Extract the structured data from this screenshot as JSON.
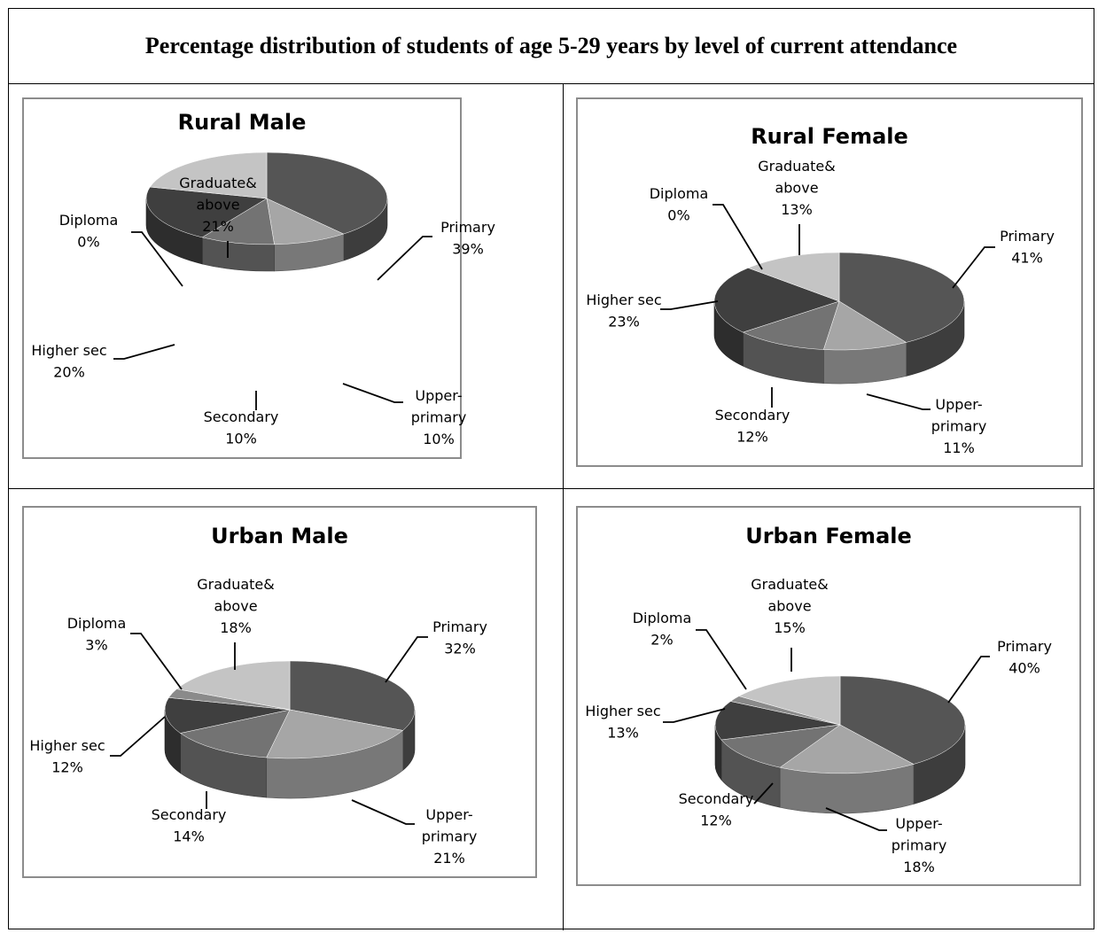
{
  "page_title": "Percentage distribution of students of age 5-29 years by level of current attendance",
  "chart_data": [
    {
      "type": "pie",
      "title": "Rural Male",
      "categories": [
        "Primary",
        "Upper-primary",
        "Secondary",
        "Higher sec",
        "Diploma",
        "Graduate& above"
      ],
      "values": [
        39,
        10,
        10,
        20,
        0,
        21
      ],
      "colors": [
        "#555555",
        "#a6a6a6",
        "#737373",
        "#3f3f3f",
        "#8a8a8a",
        "#c4c4c4"
      ],
      "label_texts": [
        [
          "Primary",
          "39%"
        ],
        [
          "Upper-",
          "primary",
          "10%"
        ],
        [
          "Secondary",
          "10%"
        ],
        [
          "Higher sec",
          "20%"
        ],
        [
          "Diploma",
          "0%"
        ],
        [
          "Graduate&",
          "above",
          "21%"
        ]
      ]
    },
    {
      "type": "pie",
      "title": "Rural Female",
      "categories": [
        "Primary",
        "Upper-primary",
        "Secondary",
        "Higher sec",
        "Diploma",
        "Graduate& above"
      ],
      "values": [
        41,
        11,
        12,
        23,
        0,
        13
      ],
      "colors": [
        "#555555",
        "#a6a6a6",
        "#737373",
        "#3f3f3f",
        "#8a8a8a",
        "#c4c4c4"
      ],
      "label_texts": [
        [
          "Primary",
          "41%"
        ],
        [
          "Upper-",
          "primary",
          "11%"
        ],
        [
          "Secondary",
          "12%"
        ],
        [
          "Higher sec",
          "23%"
        ],
        [
          "Diploma",
          "0%"
        ],
        [
          "Graduate&",
          "above",
          "13%"
        ]
      ]
    },
    {
      "type": "pie",
      "title": "Urban Male",
      "categories": [
        "Primary",
        "Upper-primary",
        "Secondary",
        "Higher sec",
        "Diploma",
        "Graduate& above"
      ],
      "values": [
        32,
        21,
        14,
        12,
        3,
        18
      ],
      "colors": [
        "#555555",
        "#a6a6a6",
        "#737373",
        "#3f3f3f",
        "#8a8a8a",
        "#c4c4c4"
      ],
      "label_texts": [
        [
          "Primary",
          "32%"
        ],
        [
          "Upper-",
          "primary",
          "21%"
        ],
        [
          "Secondary",
          "14%"
        ],
        [
          "Higher sec",
          "12%"
        ],
        [
          "Diploma",
          "3%"
        ],
        [
          "Graduate&",
          "above",
          "18%"
        ]
      ]
    },
    {
      "type": "pie",
      "title": "Urban Female",
      "categories": [
        "Primary",
        "Upper-primary",
        "Secondary",
        "Higher sec",
        "Diploma",
        "Graduate& above"
      ],
      "values": [
        40,
        18,
        12,
        13,
        2,
        15
      ],
      "colors": [
        "#555555",
        "#a6a6a6",
        "#737373",
        "#3f3f3f",
        "#8a8a8a",
        "#c4c4c4"
      ],
      "label_texts": [
        [
          "Primary",
          "40%"
        ],
        [
          "Upper-",
          "primary",
          "18%"
        ],
        [
          "Secondary",
          "12%"
        ],
        [
          "Higher sec",
          "13%"
        ],
        [
          "Diploma",
          "2%"
        ],
        [
          "Graduate&",
          "above",
          "15%"
        ]
      ]
    }
  ]
}
